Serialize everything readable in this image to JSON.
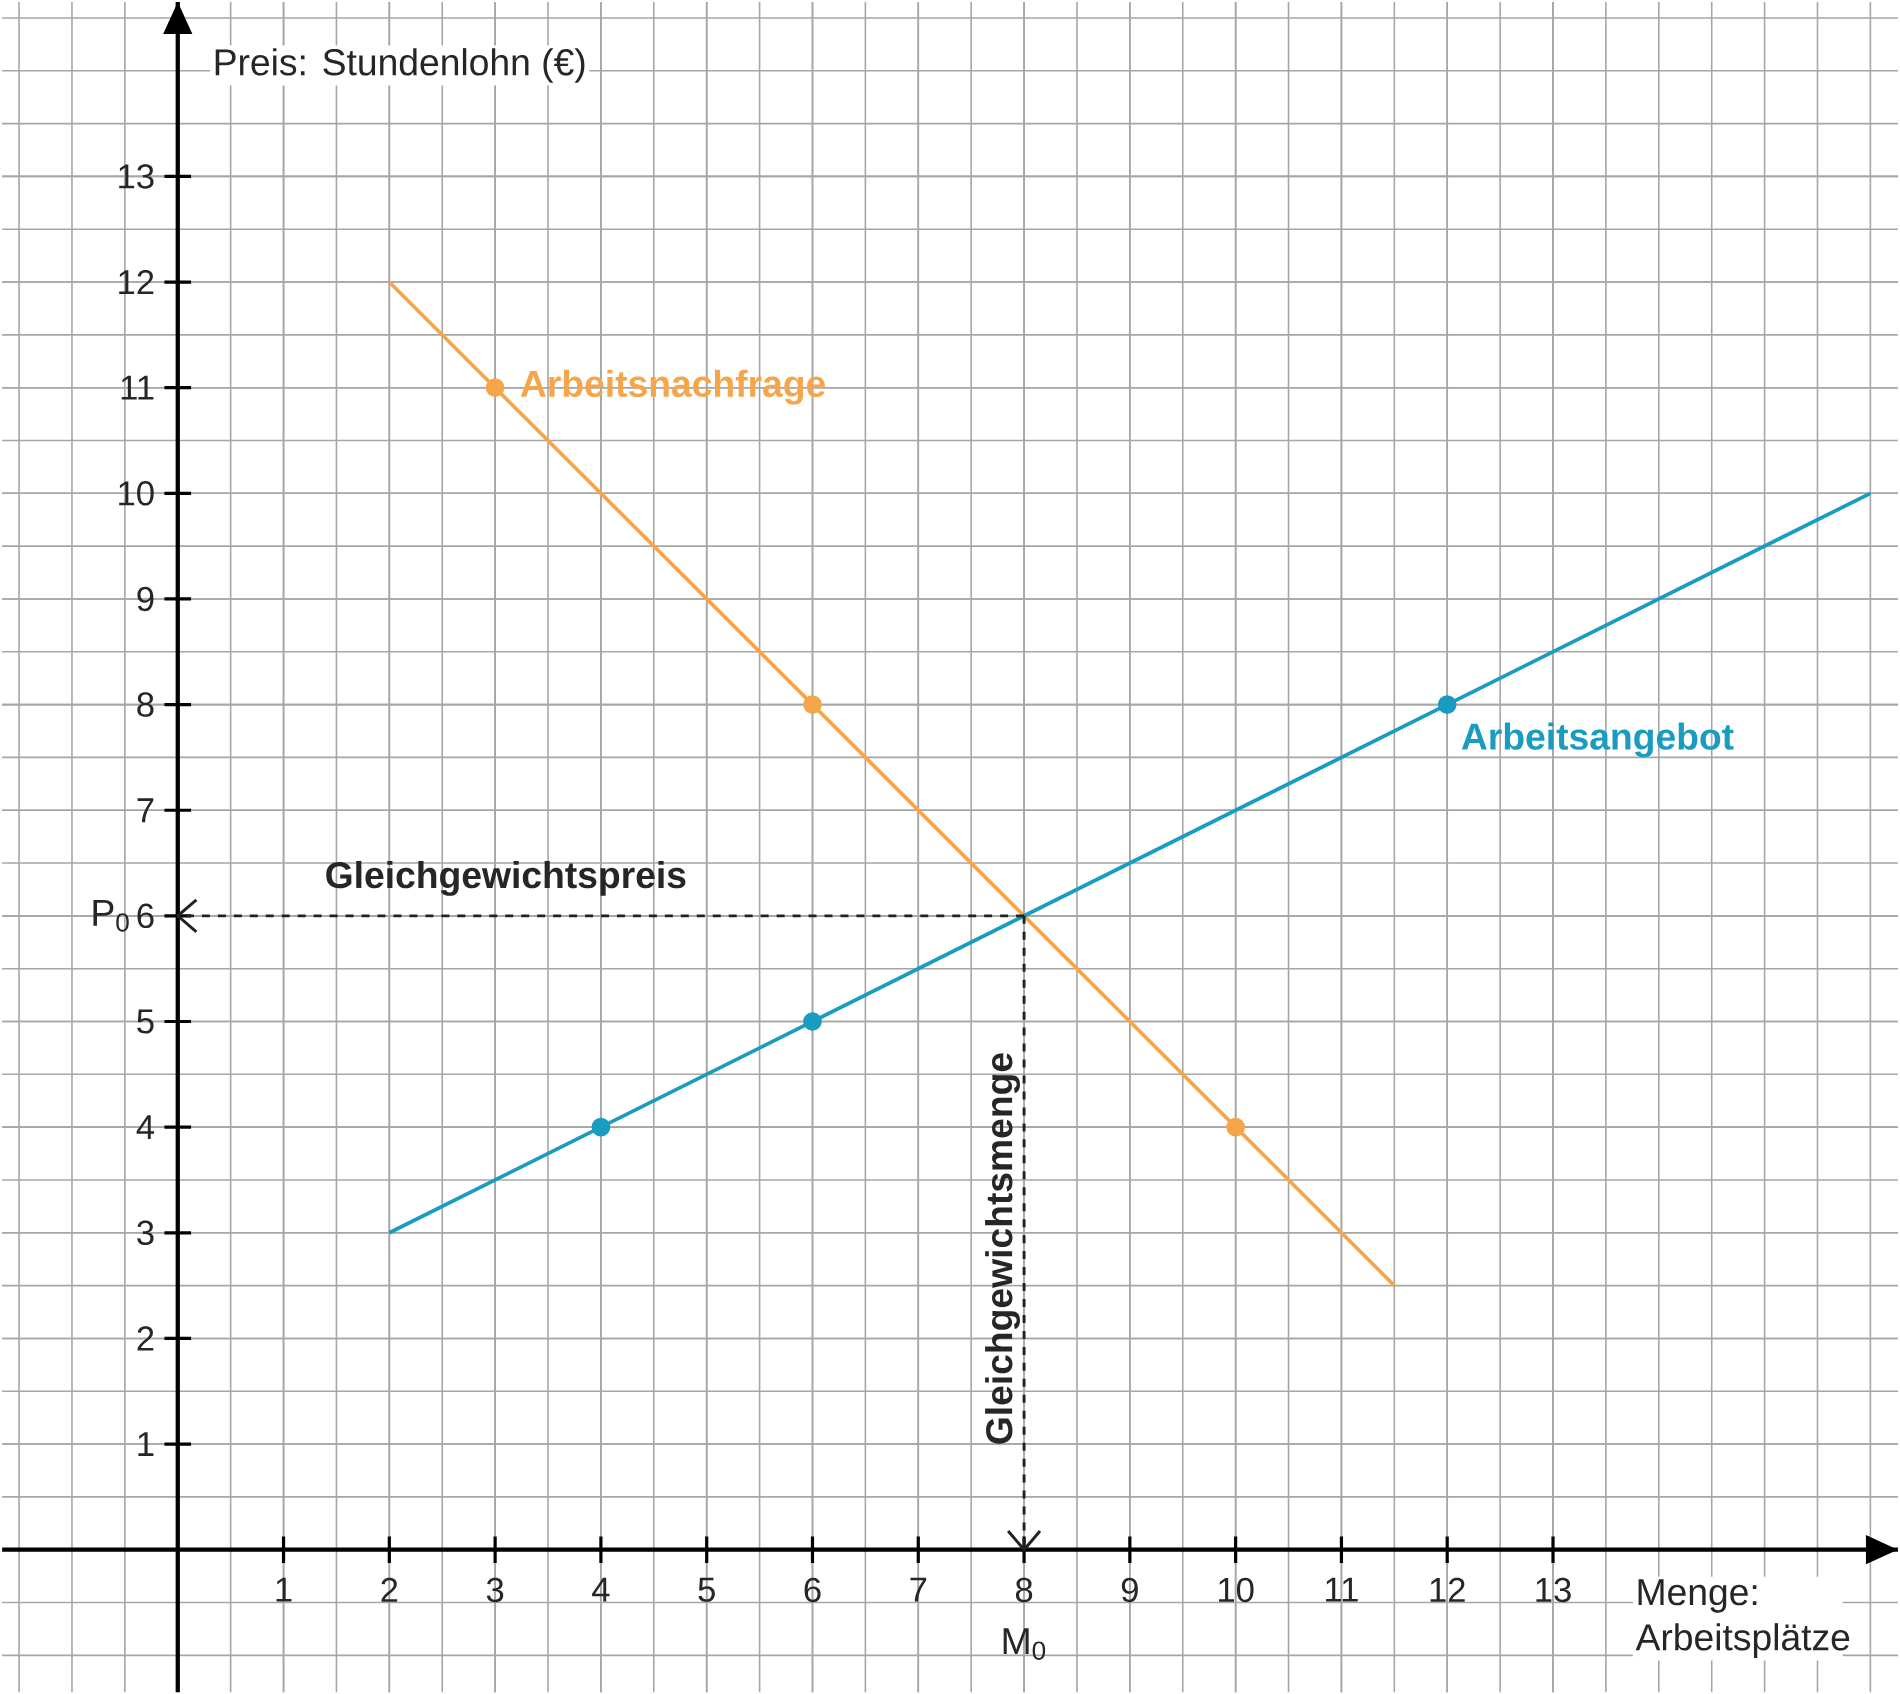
{
  "chart_data": {
    "type": "line",
    "xlabel": "Menge: Arbeitsplätze",
    "ylabel": "Preis: Stundenlohn (€)",
    "xlim": [
      -1.66,
      16.26
    ],
    "ylim": [
      -1.35,
      14.65
    ],
    "xticks": [
      1,
      2,
      3,
      4,
      5,
      6,
      7,
      8,
      9,
      10,
      11,
      12,
      13
    ],
    "yticks": [
      1,
      2,
      3,
      4,
      5,
      6,
      7,
      8,
      9,
      10,
      11,
      12,
      13
    ],
    "grid": true,
    "series": [
      {
        "name": "Arbeitsnachfrage",
        "color": "#f5a54a",
        "x": [
          2,
          11.5
        ],
        "values": [
          12,
          2.5
        ]
      },
      {
        "type": "scatter",
        "color": "#f5a54a",
        "marker": "circle",
        "x": [
          3,
          6,
          10
        ],
        "values": [
          11,
          8,
          4
        ]
      },
      {
        "name": "Arbeitsangebot",
        "color": "#1a9cc0",
        "x": [
          2,
          16
        ],
        "values": [
          3,
          10
        ]
      },
      {
        "type": "scatter",
        "color": "#1a9cc0",
        "marker": "circle",
        "x": [
          4,
          6,
          12
        ],
        "values": [
          4,
          5,
          8
        ]
      }
    ],
    "ref_lines": [
      {
        "axis": "y",
        "value": 6,
        "label": "Gleichgewichtspreis",
        "color": "#222222",
        "line_style": "dashed"
      },
      {
        "axis": "x",
        "value": 8,
        "label": "Gleichgewichtsmenge",
        "color": "#222222",
        "line_style": "dashed"
      }
    ],
    "annotations": [
      {
        "text": "P$_{0}$",
        "x": 0,
        "y": 6
      },
      {
        "text": "M$_{0}$",
        "x": 8,
        "y": 0
      }
    ]
  }
}
